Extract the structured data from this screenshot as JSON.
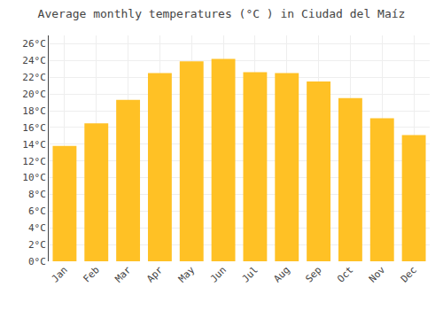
{
  "chart_data": {
    "type": "bar",
    "title": "Average monthly temperatures (°C ) in Ciudad del Maíz",
    "categories": [
      "Jan",
      "Feb",
      "Mar",
      "Apr",
      "May",
      "Jun",
      "Jul",
      "Aug",
      "Sep",
      "Oct",
      "Nov",
      "Dec"
    ],
    "values": [
      13.8,
      16.5,
      19.3,
      22.5,
      23.9,
      24.2,
      22.6,
      22.5,
      21.5,
      19.5,
      17.1,
      15.1
    ],
    "color": "#FFC125",
    "ylim": [
      0,
      27
    ],
    "yticks": [
      {
        "value": 0,
        "label": "0°C"
      },
      {
        "value": 2,
        "label": "2°C"
      },
      {
        "value": 4,
        "label": "4°C"
      },
      {
        "value": 6,
        "label": "6°C"
      },
      {
        "value": 8,
        "label": "8°C"
      },
      {
        "value": 10,
        "label": "10°C"
      },
      {
        "value": 12,
        "label": "12°C"
      },
      {
        "value": 14,
        "label": "14°C"
      },
      {
        "value": 16,
        "label": "16°C"
      },
      {
        "value": 18,
        "label": "18°C"
      },
      {
        "value": 20,
        "label": "20°C"
      },
      {
        "value": 22,
        "label": "22°C"
      },
      {
        "value": 24,
        "label": "24°C"
      },
      {
        "value": 26,
        "label": "26°C"
      }
    ],
    "grid": true
  }
}
